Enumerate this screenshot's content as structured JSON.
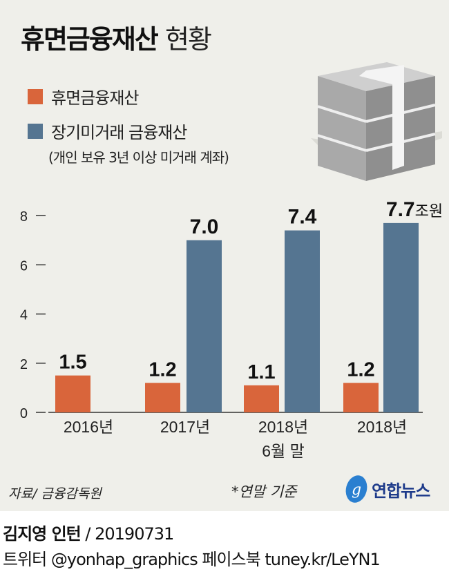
{
  "title": {
    "bold": "휴면금융재산",
    "light": "현황"
  },
  "legend": [
    {
      "label": "휴면금융재산",
      "color": "#d9653b"
    },
    {
      "label": "장기미거래 금융재산",
      "color": "#557591"
    }
  ],
  "legend_note": "(개인 보유 3년 이상 미거래 계좌)",
  "chart_data": {
    "type": "bar",
    "categories": [
      "2016년",
      "2017년",
      "2018년\n6월 말",
      "2018년"
    ],
    "category_lines": [
      [
        "2016년"
      ],
      [
        "2017년"
      ],
      [
        "2018년",
        "6월 말"
      ],
      [
        "2018년"
      ]
    ],
    "series": [
      {
        "name": "휴면금융재산",
        "color": "#d9653b",
        "values": [
          1.5,
          1.2,
          1.1,
          1.2
        ],
        "labels": [
          "1.5",
          "1.2",
          "1.1",
          "1.2"
        ]
      },
      {
        "name": "장기미거래 금융재산",
        "color": "#557591",
        "values": [
          null,
          7.0,
          7.4,
          7.7
        ],
        "labels": [
          "",
          "7.0",
          "7.4",
          "7.7"
        ]
      }
    ],
    "unit_label": "조원",
    "yticks": [
      0,
      2,
      4,
      6,
      8
    ],
    "ylim": [
      0,
      8.2
    ],
    "grid": false,
    "legend_position": "top-left"
  },
  "footer": {
    "source": "자료/ 금융감독원",
    "basis": "*연말 기준",
    "logo": "연합뉴스",
    "author": "김지영 인턴",
    "date": "/ 20190731",
    "social": "트위터 @yonhap_graphics  페이스북 tuney.kr/LeYN1"
  }
}
